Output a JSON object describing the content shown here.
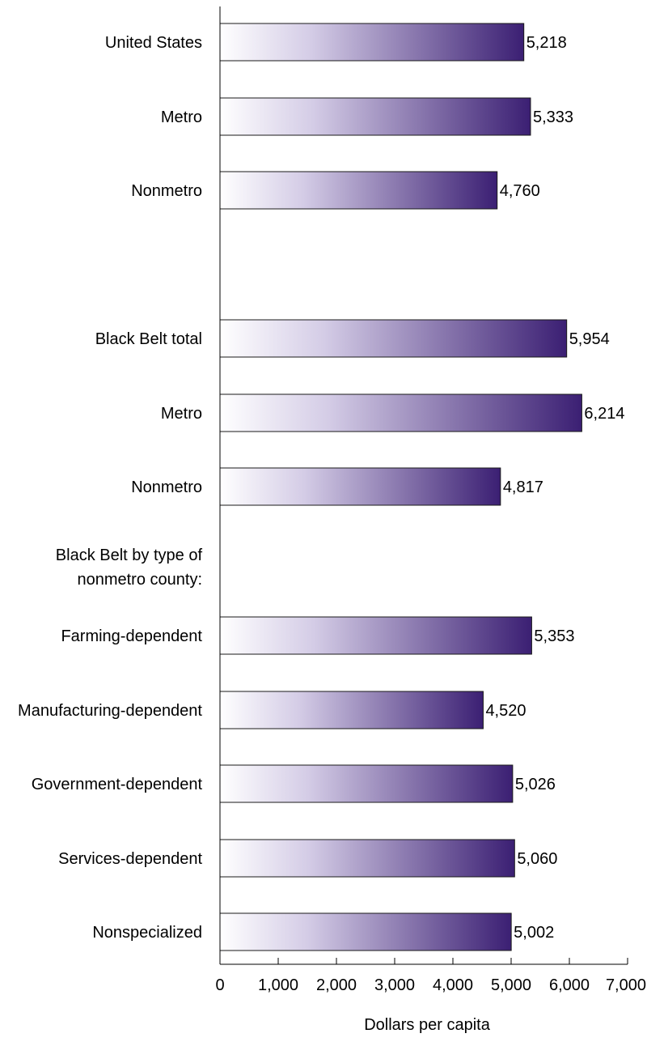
{
  "chart_data": {
    "type": "bar",
    "orientation": "horizontal",
    "categories": [
      "United States",
      "Metro",
      "Nonmetro",
      "Black Belt total",
      "Metro",
      "Nonmetro",
      "Farming-dependent",
      "Manufacturing-dependent",
      "Government-dependent",
      "Services-dependent",
      "Nonspecialized"
    ],
    "values": [
      5218,
      5333,
      4760,
      5954,
      6214,
      4817,
      5353,
      4520,
      5026,
      5060,
      5002
    ],
    "value_labels": [
      "5,218",
      "5,333",
      "4,760",
      "5,954",
      "6,214",
      "4,817",
      "5,353",
      "4,520",
      "5,026",
      "5,060",
      "5,002"
    ],
    "group_heading": [
      "Black Belt by type of",
      "nonmetro county:"
    ],
    "xlabel": "Dollars per capita",
    "xlim": [
      0,
      7000
    ],
    "xticks": [
      0,
      1000,
      2000,
      3000,
      4000,
      5000,
      6000,
      7000
    ],
    "xtick_labels": [
      "0",
      "1,000",
      "2,000",
      "3,000",
      "4,000",
      "5,000",
      "6,000",
      "7,000"
    ],
    "grid": false,
    "colors": {
      "gradient_start": "#ffffff",
      "gradient_end": "#3b1f73",
      "bar_stroke": "#1a1a1a",
      "axis": "#000000"
    }
  }
}
